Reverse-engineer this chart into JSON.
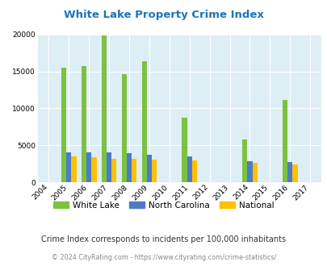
{
  "title": "White Lake Property Crime Index",
  "years": [
    2004,
    2005,
    2006,
    2007,
    2008,
    2009,
    2010,
    2011,
    2012,
    2013,
    2014,
    2015,
    2016,
    2017
  ],
  "white_lake": [
    0,
    15500,
    15700,
    19900,
    14600,
    16400,
    0,
    8700,
    0,
    0,
    5800,
    0,
    11100,
    0
  ],
  "north_carolina": [
    0,
    4100,
    4100,
    4050,
    3900,
    3700,
    0,
    3500,
    0,
    0,
    2800,
    0,
    2700,
    0
  ],
  "national": [
    0,
    3500,
    3400,
    3150,
    3200,
    3100,
    0,
    2950,
    0,
    0,
    2650,
    0,
    2450,
    0
  ],
  "colors": {
    "white_lake": "#7dc142",
    "north_carolina": "#4d7cc7",
    "national": "#ffc000"
  },
  "ylim": [
    0,
    20000
  ],
  "yticks": [
    0,
    5000,
    10000,
    15000,
    20000
  ],
  "background_color": "#deeef5",
  "grid_color": "#ffffff",
  "title_color": "#1a75bc",
  "subtitle": "Crime Index corresponds to incidents per 100,000 inhabitants",
  "footer": "© 2024 CityRating.com - https://www.cityrating.com/crime-statistics/",
  "bar_width": 0.25
}
